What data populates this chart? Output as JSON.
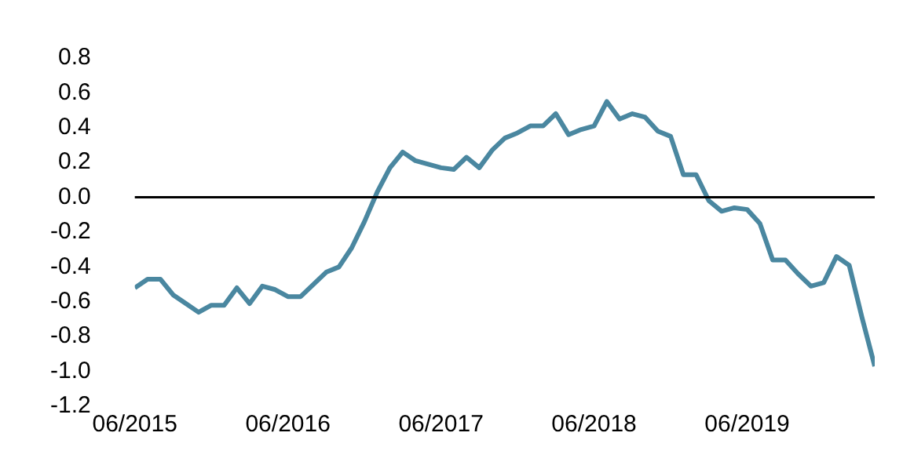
{
  "chart_data": {
    "type": "line",
    "x": [
      "2015-06",
      "2015-07",
      "2015-08",
      "2015-09",
      "2015-10",
      "2015-11",
      "2015-12",
      "2016-01",
      "2016-02",
      "2016-03",
      "2016-04",
      "2016-05",
      "2016-06",
      "2016-07",
      "2016-08",
      "2016-09",
      "2016-10",
      "2016-11",
      "2016-12",
      "2017-01",
      "2017-02",
      "2017-03",
      "2017-04",
      "2017-05",
      "2017-06",
      "2017-07",
      "2017-08",
      "2017-09",
      "2017-10",
      "2017-11",
      "2017-12",
      "2018-01",
      "2018-02",
      "2018-03",
      "2018-04",
      "2018-05",
      "2018-06",
      "2018-07",
      "2018-08",
      "2018-09",
      "2018-10",
      "2018-11",
      "2018-12",
      "2019-01",
      "2019-02",
      "2019-03",
      "2019-04",
      "2019-05",
      "2019-06",
      "2019-07",
      "2019-08",
      "2019-09",
      "2019-10",
      "2019-11",
      "2019-12",
      "2020-01",
      "2020-02",
      "2020-03",
      "2020-04"
    ],
    "series": [
      {
        "color": "#4a87a0",
        "values": [
          -0.52,
          -0.47,
          -0.47,
          -0.56,
          -0.61,
          -0.66,
          -0.62,
          -0.62,
          -0.52,
          -0.61,
          -0.51,
          -0.53,
          -0.57,
          -0.57,
          -0.5,
          -0.43,
          -0.4,
          -0.29,
          -0.14,
          0.03,
          0.17,
          0.26,
          0.21,
          0.19,
          0.17,
          0.16,
          0.23,
          0.17,
          0.27,
          0.34,
          0.37,
          0.41,
          0.41,
          0.48,
          0.36,
          0.39,
          0.41,
          0.55,
          0.45,
          0.48,
          0.46,
          0.38,
          0.35,
          0.13,
          0.13,
          -0.02,
          -0.08,
          -0.06,
          -0.07,
          -0.15,
          -0.36,
          -0.36,
          -0.44,
          -0.51,
          -0.49,
          -0.34,
          -0.39,
          -0.69,
          -0.97
        ]
      }
    ],
    "xlim": [
      "2015-06",
      "2020-04"
    ],
    "xticks": [
      {
        "value": "2015-06",
        "label": "06/2015"
      },
      {
        "value": "2016-06",
        "label": "06/2016"
      },
      {
        "value": "2017-06",
        "label": "06/2017"
      },
      {
        "value": "2018-06",
        "label": "06/2018"
      },
      {
        "value": "2019-06",
        "label": "06/2019"
      }
    ],
    "ylim": [
      -1.2,
      0.8
    ],
    "yticks": [
      0.8,
      0.6,
      0.4,
      0.2,
      {
        "value": 0,
        "label": "0.0"
      },
      -0.2,
      -0.4,
      -0.6,
      -0.8,
      {
        "value": -1,
        "label": "-1.0"
      },
      -1.2
    ],
    "ref_lines": [
      {
        "axis": "y",
        "value": 0,
        "color": "#000000"
      }
    ],
    "grid": false,
    "legend": false,
    "marker": "none",
    "line_style": "solid"
  }
}
